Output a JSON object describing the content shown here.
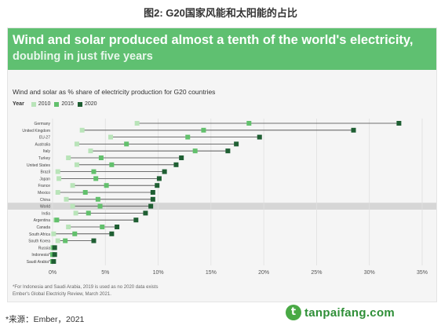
{
  "figure_caption": "图2: G20国家风能和太阳能的占比",
  "banner": {
    "title": "Wind and solar produced almost a tenth of the world's electricity,",
    "subtitle": "doubling in just five years"
  },
  "chart_data": {
    "type": "dot-range",
    "title": "Wind and solar as % share of electricity production for G20 countries",
    "legend_title": "Year",
    "series": [
      {
        "name": "2010",
        "color": "#b9e4b9"
      },
      {
        "name": "2015",
        "color": "#62c06c"
      },
      {
        "name": "2020",
        "color": "#1f5f33"
      }
    ],
    "xlim": [
      0,
      35
    ],
    "x_ticks": [
      "0%",
      "5%",
      "10%",
      "15%",
      "20%",
      "25%",
      "30%",
      "35%"
    ],
    "x_tick_values": [
      0,
      5,
      10,
      15,
      20,
      25,
      30,
      35
    ],
    "highlight": "World",
    "rows": [
      {
        "label": "Germany",
        "v2010": 8,
        "v2015": 18.6,
        "v2020": 32.8
      },
      {
        "label": "United Kingdom",
        "v2010": 2.8,
        "v2015": 14.3,
        "v2020": 28.5
      },
      {
        "label": "EU-27",
        "v2010": 5.5,
        "v2015": 12.8,
        "v2020": 19.6
      },
      {
        "label": "Australia",
        "v2010": 2.3,
        "v2015": 7,
        "v2020": 17.4
      },
      {
        "label": "Italy",
        "v2010": 3.6,
        "v2015": 13.5,
        "v2020": 16.6
      },
      {
        "label": "Turkey",
        "v2010": 1.5,
        "v2015": 4.6,
        "v2020": 12.2
      },
      {
        "label": "United States",
        "v2010": 2.3,
        "v2015": 5.6,
        "v2020": 11.7
      },
      {
        "label": "Brazil",
        "v2010": 0.5,
        "v2015": 3.9,
        "v2020": 10.6
      },
      {
        "label": "Japan",
        "v2010": 0.6,
        "v2015": 4.1,
        "v2020": 10.1
      },
      {
        "label": "France",
        "v2010": 1.9,
        "v2015": 5.1,
        "v2020": 9.9
      },
      {
        "label": "Mexico",
        "v2010": 0.5,
        "v2015": 3.1,
        "v2020": 9.5
      },
      {
        "label": "China",
        "v2010": 1.3,
        "v2015": 4.3,
        "v2020": 9.5
      },
      {
        "label": "World",
        "v2010": 1.9,
        "v2015": 4.5,
        "v2020": 9.3
      },
      {
        "label": "India",
        "v2010": 2.2,
        "v2015": 3.4,
        "v2020": 8.8
      },
      {
        "label": "Argentina",
        "v2010": 0.3,
        "v2015": 0.4,
        "v2020": 7.9
      },
      {
        "label": "Canada",
        "v2010": 1.5,
        "v2015": 4.7,
        "v2020": 6.1
      },
      {
        "label": "South Africa",
        "v2010": 0.1,
        "v2015": 2.1,
        "v2020": 5.6
      },
      {
        "label": "South Korea",
        "v2010": 0.5,
        "v2015": 1.2,
        "v2020": 3.9
      },
      {
        "label": "Russia",
        "v2010": 0,
        "v2015": 0.1,
        "v2020": 0.2
      },
      {
        "label": "Indonesia*",
        "v2010": 0,
        "v2015": 0,
        "v2020": 0.2
      },
      {
        "label": "Saudi Arabia*",
        "v2010": 0,
        "v2015": 0,
        "v2020": 0.1
      }
    ],
    "footnote": "*For Indonesia and Saudi Arabia, 2019 is used as no 2020 data exists",
    "source": "Ember's Global Electricity Review, March 2021."
  },
  "source_line": "*来源：Ember，2021",
  "watermark": {
    "logo_letter": "t",
    "text": "tanpaifang.com"
  }
}
